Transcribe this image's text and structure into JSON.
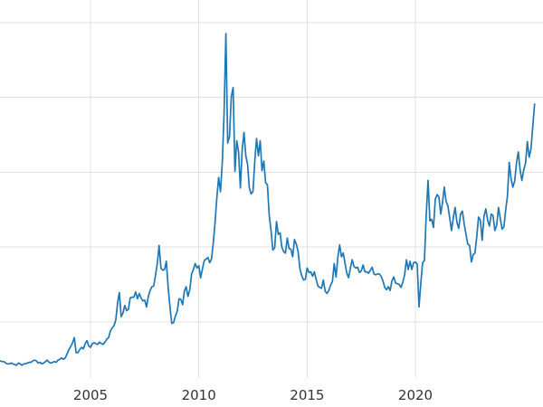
{
  "chart": {
    "background_color": "#ffffff",
    "line_color": "#1f77b4",
    "grid_color": "#e2e2e2",
    "tick_label_color": "#333333"
  },
  "chart_data": {
    "type": "line",
    "title": "",
    "xlabel": "",
    "ylabel": "",
    "grid": true,
    "legend": false,
    "x_tick_labels": [
      "2005",
      "2010",
      "2015",
      "2020"
    ],
    "x_ticks": [
      2005,
      2010,
      2015,
      2020
    ],
    "y_gridlines": [
      10,
      20,
      30,
      40,
      50
    ],
    "xlim": [
      2000.82,
      2025.89
    ],
    "ylim": [
      2.5,
      53
    ],
    "x_unit": "year",
    "x_start": 2000.8333,
    "x_step": 0.0833333,
    "values": [
      4.8,
      4.7,
      4.7,
      4.5,
      4.4,
      4.4,
      4.5,
      4.4,
      4.3,
      4.2,
      4.5,
      4.4,
      4.2,
      4.4,
      4.4,
      4.5,
      4.6,
      4.6,
      4.8,
      4.9,
      4.8,
      4.5,
      4.6,
      4.4,
      4.5,
      4.7,
      4.9,
      4.6,
      4.5,
      4.6,
      4.7,
      4.6,
      4.9,
      5.0,
      5.2,
      5.0,
      5.2,
      5.7,
      6.3,
      6.7,
      7.2,
      7.9,
      5.9,
      5.9,
      6.3,
      6.6,
      6.4,
      7.1,
      7.5,
      6.8,
      6.6,
      7.1,
      7.2,
      7.1,
      7.0,
      7.3,
      7.1,
      7.0,
      7.3,
      7.7,
      7.9,
      8.8,
      9.2,
      9.5,
      10.3,
      12.6,
      13.9,
      10.7,
      11.2,
      12.2,
      11.5,
      11.7,
      13.2,
      13.3,
      13.3,
      14.0,
      13.1,
      13.8,
      13.2,
      12.8,
      12.9,
      12.0,
      13.4,
      14.2,
      14.7,
      14.8,
      16.2,
      17.8,
      20.2,
      17.2,
      16.9,
      17.0,
      18.1,
      14.6,
      12.0,
      9.8,
      9.9,
      10.8,
      11.4,
      13.1,
      13.0,
      12.3,
      14.1,
      14.7,
      13.4,
      14.3,
      16.4,
      17.0,
      17.8,
      17.2,
      17.5,
      15.9,
      17.1,
      18.2,
      18.4,
      18.6,
      17.9,
      18.4,
      20.6,
      23.4,
      26.6,
      29.3,
      27.4,
      31.2,
      37.9,
      48.5,
      33.9,
      34.8,
      40.1,
      41.3,
      30.1,
      34.2,
      32.7,
      27.9,
      33.0,
      35.3,
      32.2,
      31.0,
      27.9,
      27.1,
      27.4,
      31.4,
      34.5,
      32.2,
      34.2,
      30.2,
      31.5,
      28.6,
      28.3,
      24.2,
      22.2,
      19.6,
      19.9,
      23.4,
      21.7,
      21.9,
      20.0,
      19.4,
      19.2,
      21.2,
      19.8,
      19.7,
      18.7,
      21.0,
      20.4,
      19.4,
      17.1,
      16.2,
      15.6,
      15.7,
      17.2,
      16.6,
      16.7,
      16.1,
      16.7,
      15.7,
      14.8,
      14.6,
      14.5,
      15.6,
      14.1,
      13.8,
      14.2,
      14.9,
      15.4,
      17.8,
      16.0,
      18.6,
      20.3,
      18.7,
      19.2,
      17.8,
      16.5,
      15.9,
      17.2,
      18.3,
      17.4,
      17.2,
      17.3,
      16.6,
      16.8,
      17.6,
      16.7,
      16.7,
      16.5,
      16.9,
      17.3,
      16.4,
      16.3,
      16.4,
      16.4,
      16.1,
      15.5,
      14.6,
      14.3,
      14.7,
      14.2,
      15.5,
      16.0,
      15.2,
      15.1,
      15.0,
      14.6,
      15.3,
      16.3,
      18.3,
      17.0,
      18.1,
      17.0,
      17.9,
      18.0,
      17.7,
      12.0,
      15.2,
      17.9,
      18.2,
      24.4,
      28.9,
      23.5,
      23.7,
      22.6,
      26.4,
      27.0,
      26.7,
      24.4,
      25.9,
      28.0,
      26.1,
      25.5,
      23.9,
      22.2,
      23.9,
      25.3,
      23.3,
      22.5,
      24.4,
      24.8,
      23.1,
      21.7,
      20.4,
      20.2,
      18.0,
      19.0,
      19.2,
      21.4,
      24.0,
      23.6,
      20.9,
      24.1,
      25.1,
      23.6,
      22.8,
      24.4,
      24.2,
      22.2,
      22.9,
      25.3,
      23.8,
      22.4,
      22.7,
      25.0,
      26.8,
      31.3,
      29.1,
      28.0,
      28.8,
      31.2,
      32.7,
      30.3,
      28.9,
      30.3,
      31.2,
      34.1,
      32.0,
      33.1,
      36.1,
      39.1
    ]
  }
}
